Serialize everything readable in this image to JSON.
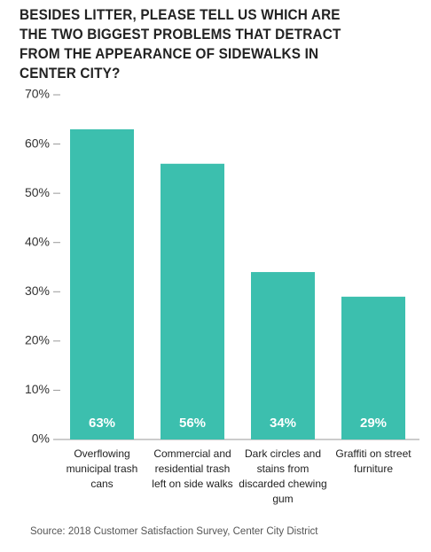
{
  "chart_data": {
    "type": "bar",
    "title": "BESIDES LITTER, PLEASE TELL US WHICH ARE THE TWO BIGGEST PROBLEMS THAT DETRACT FROM THE APPEARANCE OF SIDEWALKS IN CENTER CITY?",
    "categories": [
      "Overflowing municipal trash cans",
      "Commercial and residential trash left on side walks",
      "Dark circles and stains from discarded chewing gum",
      "Graffiti on street furniture"
    ],
    "values": [
      63,
      56,
      34,
      29
    ],
    "value_labels": [
      "63%",
      "56%",
      "34%",
      "29%"
    ],
    "color": "#3cbfae",
    "ylim": [
      0,
      70
    ],
    "yticks": [
      {
        "value": 0,
        "label": "0%"
      },
      {
        "value": 10,
        "label": "10%"
      },
      {
        "value": 20,
        "label": "20%"
      },
      {
        "value": 30,
        "label": "30%"
      },
      {
        "value": 40,
        "label": "40%"
      },
      {
        "value": 50,
        "label": "50%"
      },
      {
        "value": 60,
        "label": "60%"
      },
      {
        "value": 70,
        "label": "70%"
      }
    ],
    "source": "Source: 2018 Customer Satisfaction Survey, Center City District"
  }
}
